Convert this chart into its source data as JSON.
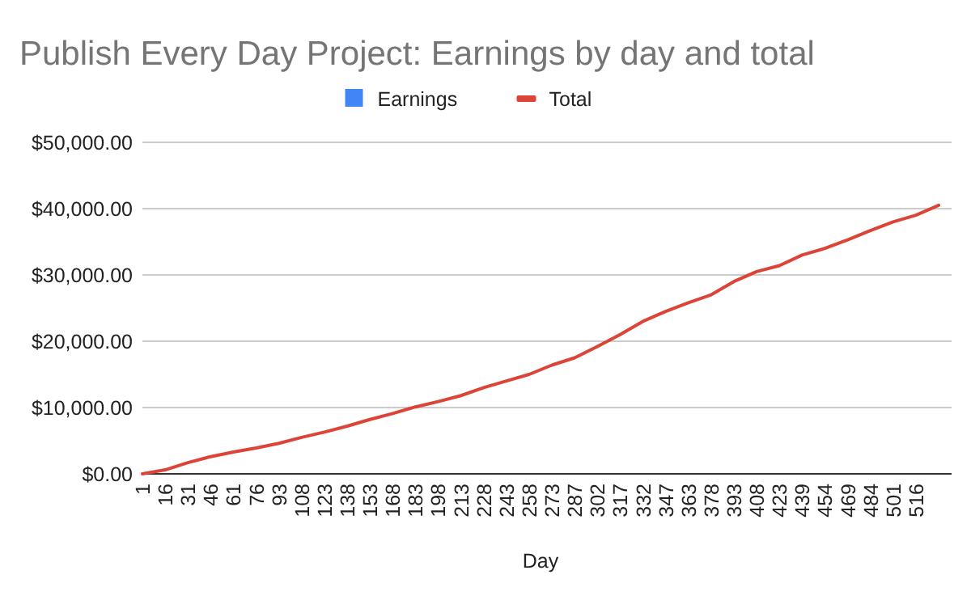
{
  "chart_data": {
    "type": "line",
    "title": "Publish Every Day Project: Earnings by day and total",
    "xlabel": "Day",
    "categories": [
      "1",
      "16",
      "31",
      "46",
      "61",
      "76",
      "93",
      "108",
      "123",
      "138",
      "153",
      "168",
      "183",
      "198",
      "213",
      "228",
      "243",
      "258",
      "273",
      "287",
      "302",
      "317",
      "332",
      "347",
      "363",
      "378",
      "393",
      "408",
      "423",
      "439",
      "454",
      "469",
      "484",
      "501",
      "516",
      null
    ],
    "series": [
      {
        "name": "Earnings",
        "type": "bar",
        "color": "#4285f4",
        "values": [
          null,
          null,
          null,
          null,
          null,
          null,
          null,
          null,
          null,
          null,
          null,
          null,
          null,
          null,
          null,
          null,
          null,
          null,
          null,
          null,
          null,
          null,
          null,
          null,
          null,
          null,
          null,
          null,
          null,
          null,
          null,
          null,
          null,
          null,
          null,
          null
        ]
      },
      {
        "name": "Total",
        "color": "#db4437",
        "values": [
          0,
          600,
          1700,
          2600,
          3300,
          3900,
          4600,
          5500,
          6300,
          7200,
          8200,
          9100,
          10100,
          10900,
          11800,
          13000,
          14000,
          15000,
          16400,
          17500,
          19200,
          21000,
          23000,
          24500,
          25800,
          27000,
          29000,
          30500,
          31400,
          33000,
          34000,
          35300,
          36700,
          38000,
          39000,
          40500
        ]
      }
    ],
    "ylim": [
      0,
      50000
    ],
    "yticks": [
      {
        "value": 0,
        "label": "$0.00"
      },
      {
        "value": 10000,
        "label": "$10,000.00"
      },
      {
        "value": 20000,
        "label": "$20,000.00"
      },
      {
        "value": 30000,
        "label": "$30,000.00"
      },
      {
        "value": 40000,
        "label": "$40,000.00"
      },
      {
        "value": 50000,
        "label": "$50,000.00"
      }
    ],
    "grid": "y",
    "legend": "top"
  }
}
